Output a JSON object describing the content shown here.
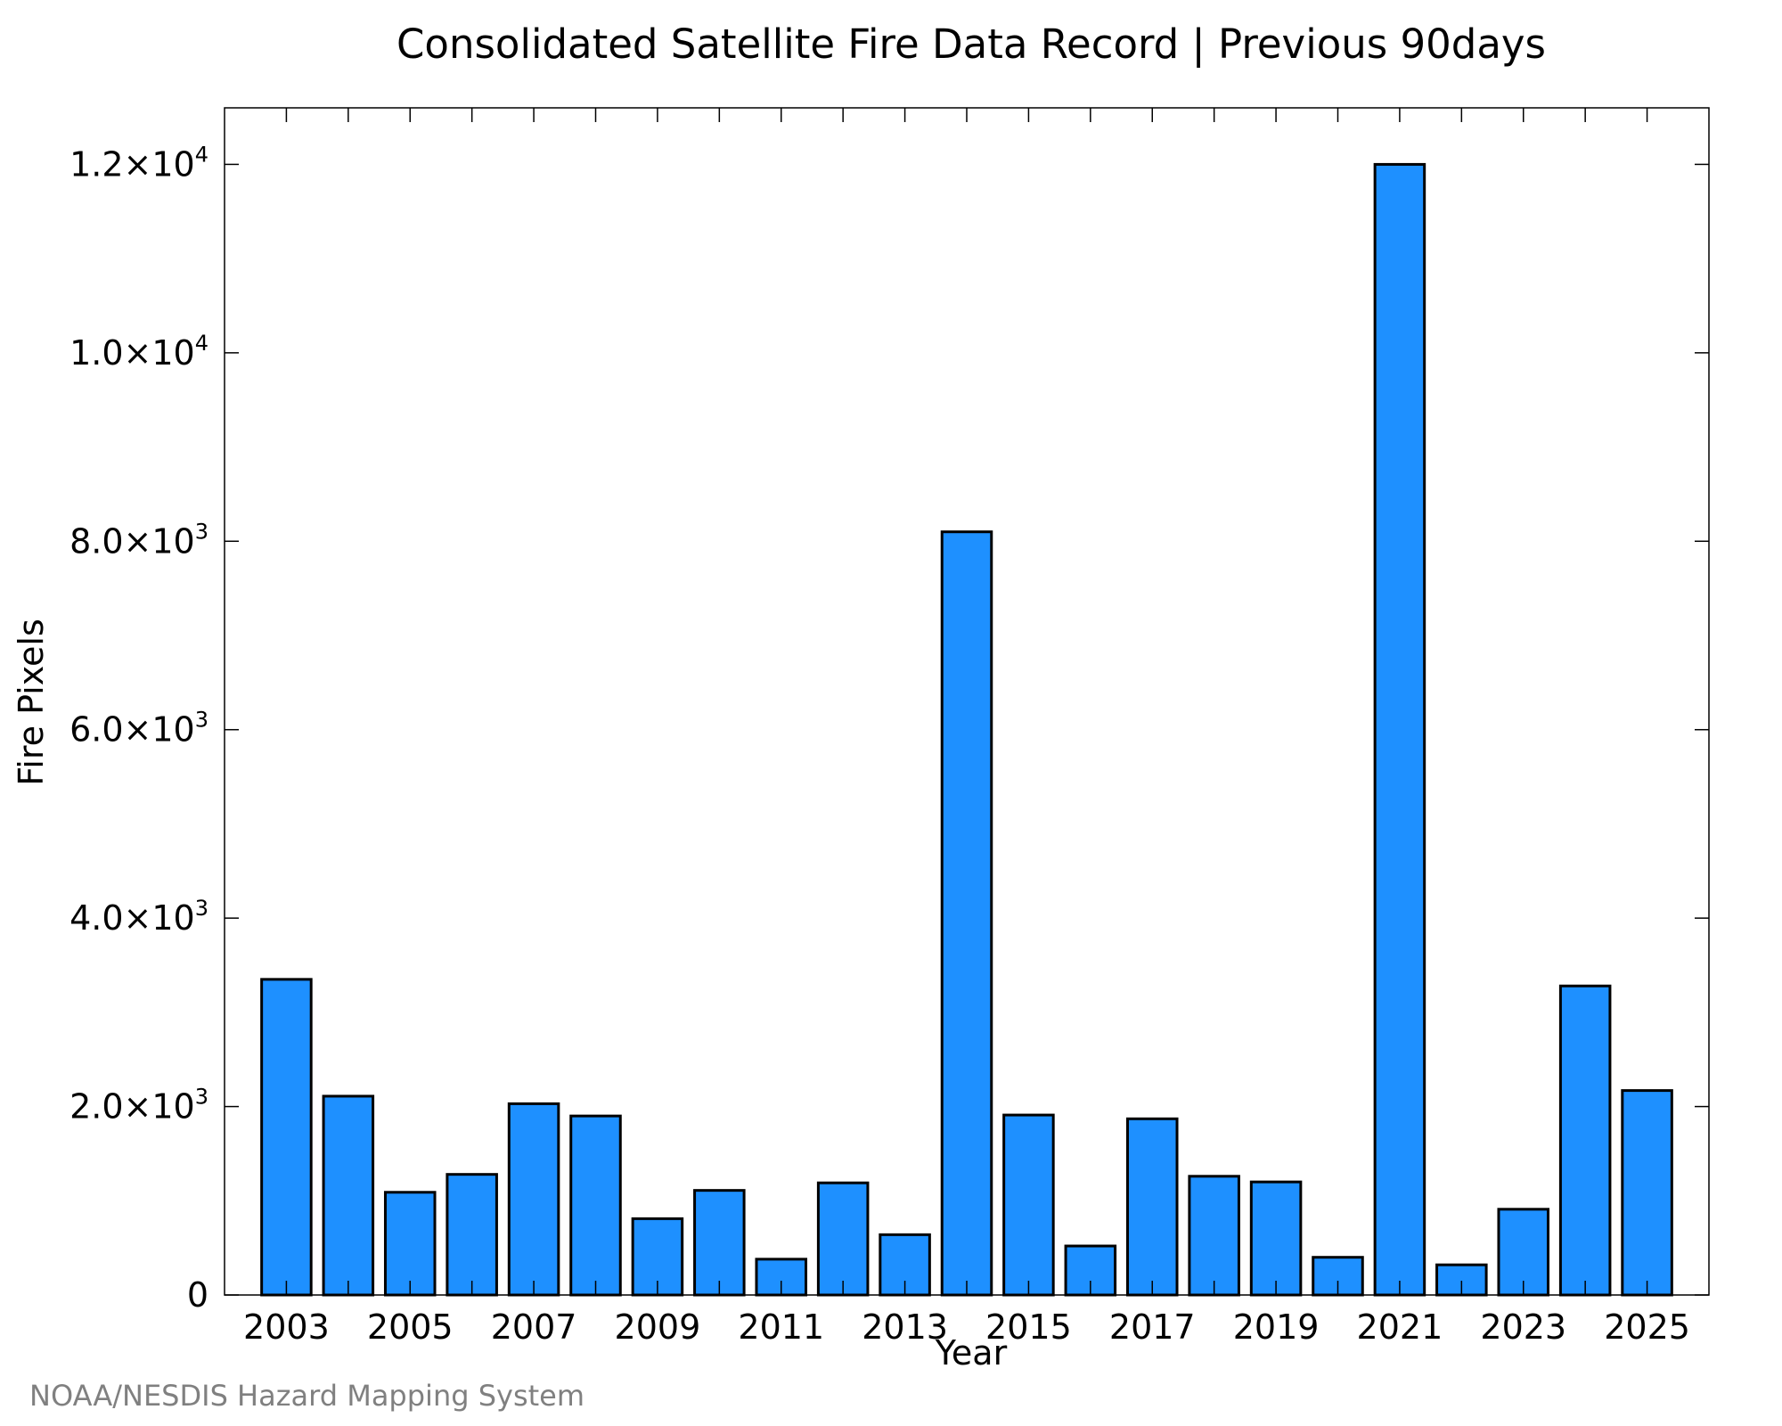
{
  "chart_data": {
    "type": "bar",
    "title": "Consolidated Satellite Fire Data Record | Previous 90days",
    "xlabel": "Year",
    "ylabel": "Fire Pixels",
    "categories": [
      "2003",
      "2004",
      "2005",
      "2006",
      "2007",
      "2008",
      "2009",
      "2010",
      "2011",
      "2012",
      "2013",
      "2014",
      "2015",
      "2016",
      "2017",
      "2018",
      "2019",
      "2020",
      "2021",
      "2022",
      "2023",
      "2024",
      "2025"
    ],
    "values": [
      3350,
      2110,
      1090,
      1280,
      2030,
      1900,
      810,
      1110,
      380,
      1190,
      640,
      8100,
      1910,
      520,
      1870,
      1260,
      1200,
      400,
      12000,
      320,
      910,
      3280,
      2170
    ],
    "x_tick_labels": [
      "2003",
      "2005",
      "2007",
      "2009",
      "2011",
      "2013",
      "2015",
      "2017",
      "2019",
      "2021",
      "2023",
      "2025"
    ],
    "y_ticks": [
      {
        "value": 0,
        "mantissa": "0",
        "exponent": ""
      },
      {
        "value": 2000,
        "mantissa": "2.0×10",
        "exponent": "3"
      },
      {
        "value": 4000,
        "mantissa": "4.0×10",
        "exponent": "3"
      },
      {
        "value": 6000,
        "mantissa": "6.0×10",
        "exponent": "3"
      },
      {
        "value": 8000,
        "mantissa": "8.0×10",
        "exponent": "3"
      },
      {
        "value": 10000,
        "mantissa": "1.0×10",
        "exponent": "4"
      },
      {
        "value": 12000,
        "mantissa": "1.2×10",
        "exponent": "4"
      }
    ],
    "ylim": [
      0,
      12600
    ],
    "xlim": [
      2002,
      2026
    ],
    "grid": false,
    "bar_color": "#1e90ff",
    "bar_edge_color": "#000000"
  },
  "credit": "NOAA/NESDIS Hazard Mapping System"
}
